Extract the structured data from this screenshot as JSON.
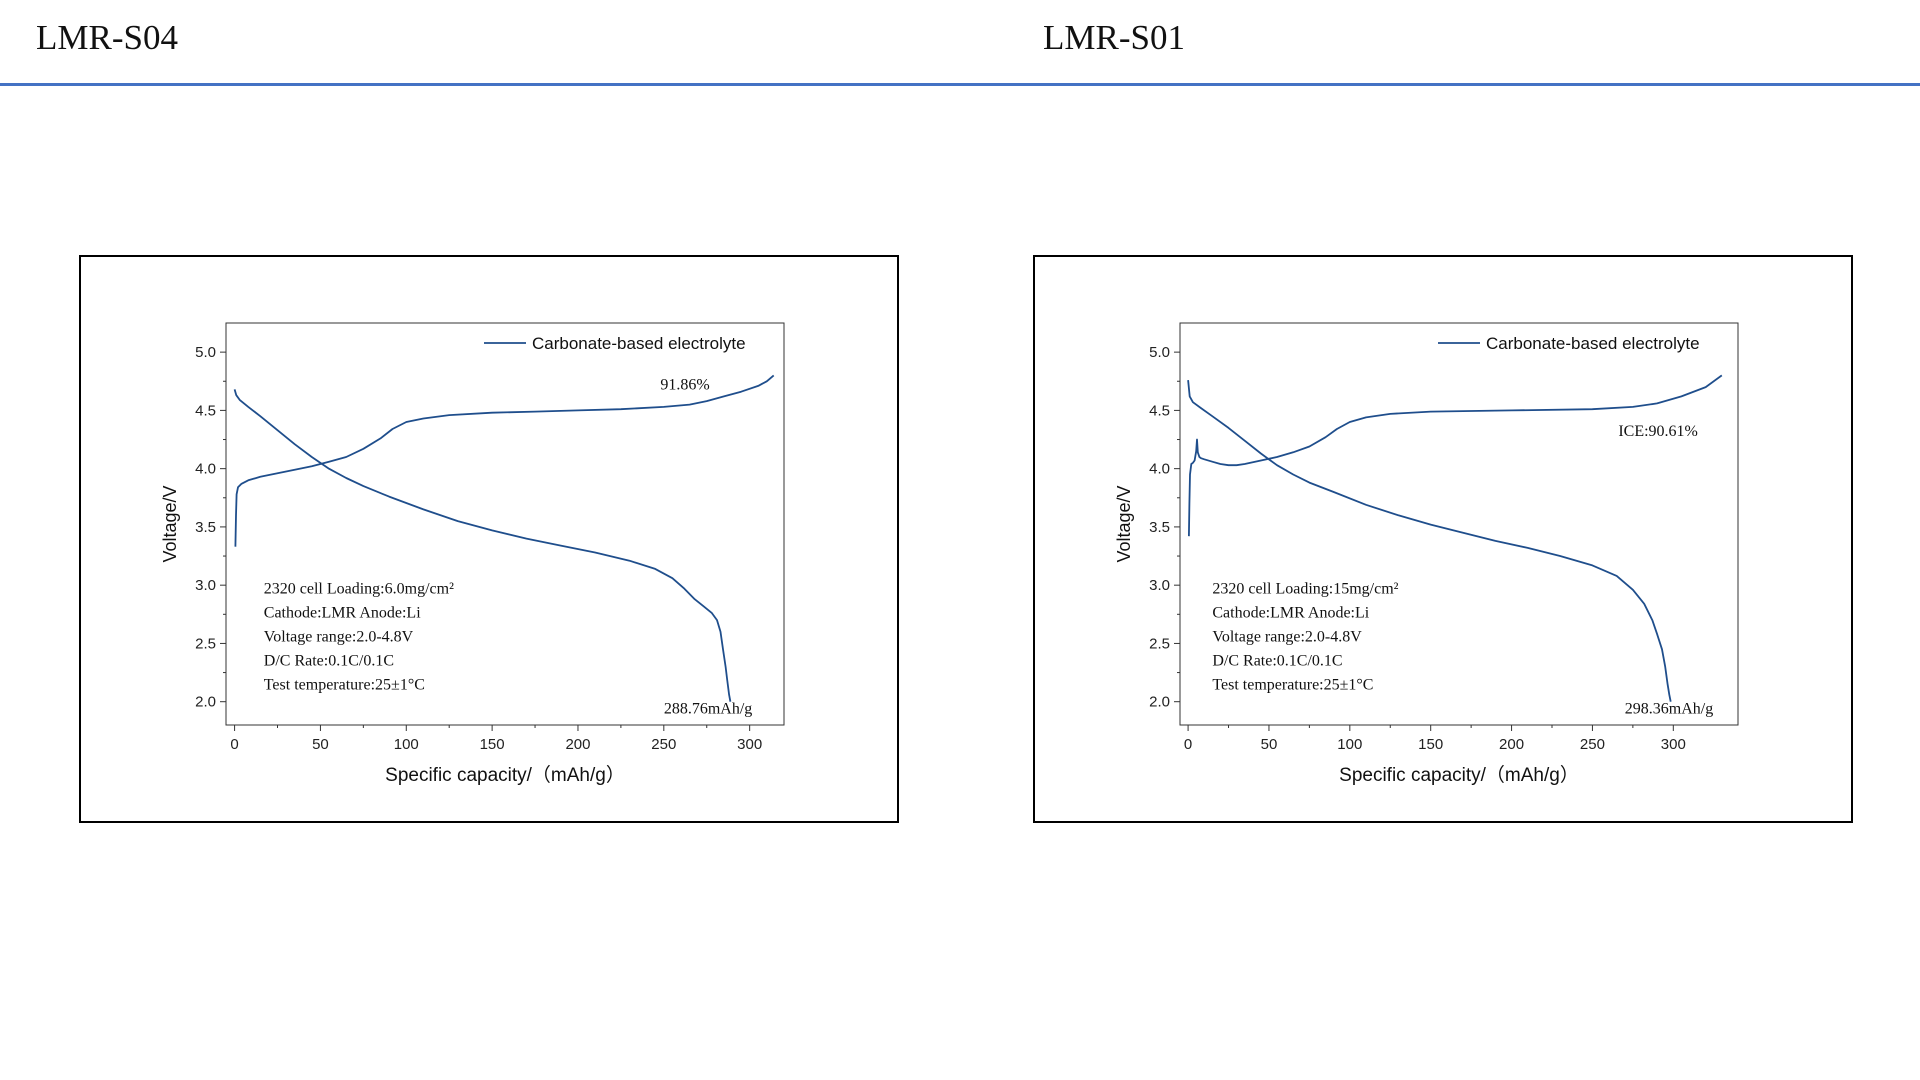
{
  "header": {
    "left_title": "LMR-S04",
    "right_title": "LMR-S01",
    "rule_color": "#4472c4"
  },
  "chart_data": [
    {
      "type": "line",
      "xlabel": "Specific capacity/（mAh/g）",
      "ylabel": "Voltage/V",
      "xlim": [
        -5,
        320
      ],
      "ylim": [
        1.8,
        5.25
      ],
      "xticks": [
        0,
        50,
        100,
        150,
        200,
        250,
        300
      ],
      "yticks": [
        2.0,
        2.5,
        3.0,
        3.5,
        4.0,
        4.5,
        5.0
      ],
      "legend": {
        "label": "Carbonate-based electrolyte",
        "position": "top-right"
      },
      "line_color": "#1f4e8c",
      "annotations": [
        {
          "text": "91.86%",
          "x": 248,
          "y": 4.68
        },
        {
          "text": "288.76mAh/g",
          "x": 250,
          "y": 1.9
        }
      ],
      "info_lines": [
        "2320   cell    Loading:6.0mg/cm²",
        "Cathode:LMR    Anode:Li",
        "Voltage range:2.0-4.8V",
        "D/C Rate:0.1C/0.1C",
        "Test temperature:25±1°C"
      ],
      "info_anchor": {
        "x": 17,
        "y": 2.93
      },
      "series": [
        {
          "x": [
            0.5,
            0.8,
            1.2,
            2,
            4,
            8,
            15,
            25,
            35,
            45,
            55,
            65,
            75,
            85,
            92,
            100,
            110,
            125,
            150,
            175,
            200,
            225,
            250,
            265,
            275,
            285,
            295,
            305,
            310,
            314
          ],
          "y": [
            3.33,
            3.6,
            3.78,
            3.84,
            3.87,
            3.9,
            3.93,
            3.96,
            3.99,
            4.02,
            4.06,
            4.1,
            4.17,
            4.26,
            4.34,
            4.4,
            4.43,
            4.46,
            4.48,
            4.49,
            4.5,
            4.51,
            4.53,
            4.55,
            4.58,
            4.62,
            4.66,
            4.71,
            4.75,
            4.8
          ]
        },
        {
          "x": [
            0,
            1,
            3,
            8,
            15,
            25,
            35,
            45,
            55,
            65,
            75,
            90,
            110,
            130,
            150,
            170,
            190,
            210,
            230,
            245,
            255,
            262,
            268,
            273,
            278,
            281,
            283,
            284.5,
            286,
            287,
            288,
            288.76
          ],
          "y": [
            4.68,
            4.63,
            4.59,
            4.53,
            4.45,
            4.33,
            4.21,
            4.1,
            4.0,
            3.92,
            3.85,
            3.76,
            3.65,
            3.55,
            3.47,
            3.4,
            3.34,
            3.28,
            3.21,
            3.14,
            3.06,
            2.97,
            2.88,
            2.82,
            2.76,
            2.7,
            2.6,
            2.45,
            2.3,
            2.18,
            2.06,
            2.0
          ]
        }
      ]
    },
    {
      "type": "line",
      "xlabel": "Specific capacity/（mAh/g）",
      "ylabel": "Voltage/V",
      "xlim": [
        -5,
        340
      ],
      "ylim": [
        1.8,
        5.25
      ],
      "xticks": [
        0,
        50,
        100,
        150,
        200,
        250,
        300
      ],
      "yticks": [
        2.0,
        2.5,
        3.0,
        3.5,
        4.0,
        4.5,
        5.0
      ],
      "legend": {
        "label": "Carbonate-based electrolyte",
        "position": "top-right"
      },
      "line_color": "#1f4e8c",
      "annotations": [
        {
          "text": "ICE:90.61%",
          "x": 266,
          "y": 4.28
        },
        {
          "text": "298.36mAh/g",
          "x": 270,
          "y": 1.9
        }
      ],
      "info_lines": [
        "2320   cell    Loading:15mg/cm²",
        "Cathode:LMR    Anode:Li",
        "Voltage range:2.0-4.8V",
        "D/C Rate:0.1C/0.1C",
        "Test temperature:25±1°C"
      ],
      "info_anchor": {
        "x": 15,
        "y": 2.93
      },
      "series": [
        {
          "x": [
            0.5,
            0.8,
            1.2,
            2,
            3,
            4,
            5,
            5.5,
            6,
            7,
            8,
            10,
            15,
            20,
            25,
            30,
            35,
            45,
            55,
            65,
            75,
            85,
            92,
            100,
            110,
            125,
            150,
            200,
            250,
            275,
            290,
            305,
            320,
            330
          ],
          "y": [
            3.42,
            3.7,
            3.95,
            4.04,
            4.05,
            4.07,
            4.15,
            4.25,
            4.14,
            4.1,
            4.09,
            4.08,
            4.06,
            4.04,
            4.03,
            4.03,
            4.04,
            4.07,
            4.1,
            4.14,
            4.19,
            4.27,
            4.34,
            4.4,
            4.44,
            4.47,
            4.49,
            4.5,
            4.51,
            4.53,
            4.56,
            4.62,
            4.7,
            4.8
          ]
        },
        {
          "x": [
            0,
            1,
            3,
            8,
            15,
            25,
            35,
            45,
            55,
            65,
            75,
            90,
            110,
            130,
            150,
            170,
            190,
            210,
            230,
            250,
            265,
            275,
            282,
            287,
            290,
            293,
            295,
            296.5,
            297.5,
            298.36
          ],
          "y": [
            4.76,
            4.62,
            4.57,
            4.52,
            4.45,
            4.35,
            4.24,
            4.13,
            4.03,
            3.95,
            3.88,
            3.8,
            3.69,
            3.6,
            3.52,
            3.45,
            3.38,
            3.32,
            3.25,
            3.17,
            3.08,
            2.96,
            2.84,
            2.7,
            2.58,
            2.45,
            2.3,
            2.15,
            2.06,
            2.0
          ]
        }
      ]
    }
  ]
}
